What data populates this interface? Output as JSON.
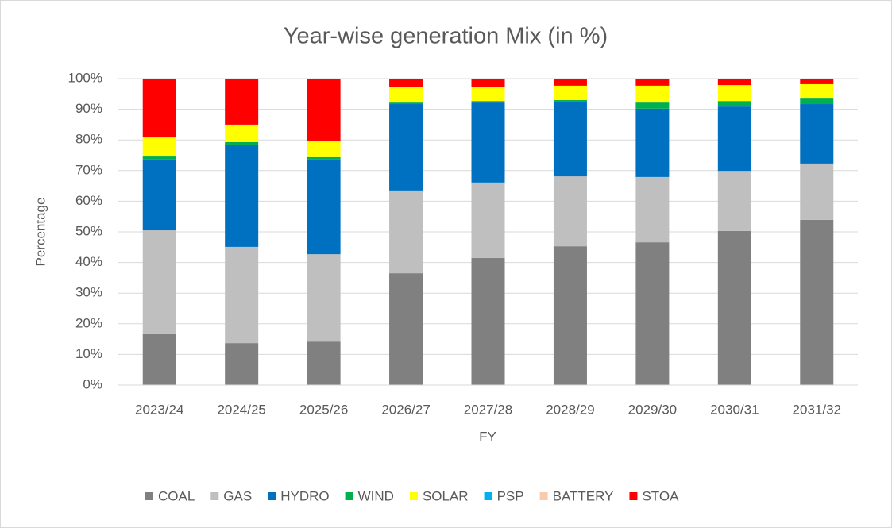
{
  "chart_data": {
    "type": "stacked_bar",
    "title": "Year-wise generation Mix (in %)",
    "x_label": "FY",
    "y_label": "Percentage",
    "categories": [
      "2023/24",
      "2024/25",
      "2025/26",
      "2026/27",
      "2027/28",
      "2028/29",
      "2029/30",
      "2030/31",
      "2031/32"
    ],
    "series": [
      {
        "name": "COAL",
        "color": "#808080",
        "values": [
          16.6,
          13.7,
          14.2,
          36.5,
          41.5,
          45.3,
          46.6,
          50.3,
          53.9
        ]
      },
      {
        "name": "GAS",
        "color": "#bfbfbf",
        "values": [
          33.9,
          31.4,
          28.5,
          27.0,
          24.6,
          22.8,
          21.3,
          19.6,
          18.4
        ]
      },
      {
        "name": "HYDRO",
        "color": "#0070c0",
        "values": [
          23.1,
          33.4,
          30.9,
          28.2,
          26.1,
          24.4,
          22.3,
          21.0,
          19.4
        ]
      },
      {
        "name": "WIND",
        "color": "#00b050",
        "values": [
          1.0,
          0.8,
          0.8,
          0.5,
          0.5,
          0.5,
          2.0,
          1.8,
          1.8
        ]
      },
      {
        "name": "SOLAR",
        "color": "#ffff00",
        "values": [
          6.2,
          5.7,
          5.4,
          5.0,
          4.7,
          4.7,
          5.5,
          5.2,
          4.7
        ]
      },
      {
        "name": "PSP",
        "color": "#00b0f0",
        "values": [
          0,
          0,
          0,
          0,
          0,
          0,
          0,
          0,
          0
        ]
      },
      {
        "name": "BATTERY",
        "color": "#f8cbad",
        "values": [
          0,
          0,
          0,
          0,
          0,
          0,
          0,
          0,
          0
        ]
      },
      {
        "name": "STOA",
        "color": "#ff0000",
        "values": [
          19.2,
          15.0,
          20.2,
          2.8,
          2.6,
          2.3,
          2.3,
          2.1,
          1.8
        ]
      }
    ],
    "ylim": [
      0,
      100
    ],
    "yticks": [
      {
        "value": 0,
        "label": "0%"
      },
      {
        "value": 10,
        "label": "10%"
      },
      {
        "value": 20,
        "label": "20%"
      },
      {
        "value": 30,
        "label": "30%"
      },
      {
        "value": 40,
        "label": "40%"
      },
      {
        "value": 50,
        "label": "50%"
      },
      {
        "value": 60,
        "label": "60%"
      },
      {
        "value": 70,
        "label": "70%"
      },
      {
        "value": 80,
        "label": "80%"
      },
      {
        "value": 90,
        "label": "90%"
      },
      {
        "value": 100,
        "label": "100%"
      }
    ],
    "grid": true,
    "legend": "bottom"
  }
}
